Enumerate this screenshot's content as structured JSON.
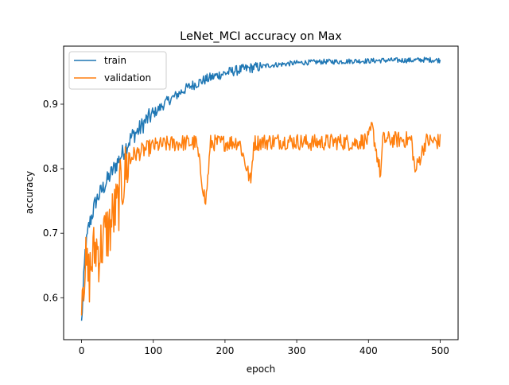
{
  "chart_data": {
    "type": "line",
    "title": "LeNet_MCI accuracy on Max",
    "xlabel": "epoch",
    "ylabel": "accuracy",
    "xlim": [
      -25,
      525
    ],
    "ylim": [
      0.535,
      0.99
    ],
    "xticks": [
      0,
      100,
      200,
      300,
      400,
      500
    ],
    "yticks": [
      0.6,
      0.7,
      0.8,
      0.9
    ],
    "ytick_labels": [
      "0.6",
      "0.7",
      "0.8",
      "0.9"
    ],
    "legend_position": "top-left",
    "grid": false,
    "series": [
      {
        "name": "train",
        "color": "#1f77b4",
        "x": [
          0,
          5,
          10,
          15,
          20,
          25,
          30,
          40,
          50,
          60,
          70,
          80,
          90,
          100,
          110,
          120,
          130,
          140,
          150,
          160,
          170,
          180,
          190,
          200,
          210,
          220,
          230,
          240,
          250,
          260,
          270,
          280,
          290,
          300,
          320,
          340,
          360,
          380,
          400,
          420,
          440,
          460,
          480,
          500
        ],
        "y": [
          0.56,
          0.67,
          0.71,
          0.73,
          0.75,
          0.76,
          0.77,
          0.79,
          0.81,
          0.83,
          0.85,
          0.86,
          0.875,
          0.885,
          0.895,
          0.905,
          0.912,
          0.92,
          0.927,
          0.932,
          0.937,
          0.941,
          0.945,
          0.948,
          0.951,
          0.953,
          0.955,
          0.957,
          0.958,
          0.96,
          0.961,
          0.962,
          0.963,
          0.964,
          0.965,
          0.966,
          0.966,
          0.967,
          0.967,
          0.968,
          0.968,
          0.968,
          0.969,
          0.968
        ]
      },
      {
        "name": "validation",
        "color": "#ff7f0e",
        "x": [
          0,
          5,
          10,
          15,
          20,
          25,
          30,
          35,
          40,
          45,
          50,
          55,
          60,
          65,
          70,
          80,
          90,
          100,
          120,
          140,
          160,
          173,
          180,
          200,
          220,
          236,
          240,
          260,
          280,
          300,
          320,
          340,
          360,
          380,
          400,
          405,
          417,
          420,
          440,
          460,
          465,
          480,
          500
        ],
        "y": [
          0.62,
          0.65,
          0.63,
          0.66,
          0.68,
          0.67,
          0.69,
          0.7,
          0.71,
          0.73,
          0.74,
          0.77,
          0.79,
          0.81,
          0.82,
          0.825,
          0.83,
          0.835,
          0.838,
          0.84,
          0.84,
          0.745,
          0.84,
          0.84,
          0.842,
          0.778,
          0.84,
          0.842,
          0.843,
          0.842,
          0.84,
          0.841,
          0.842,
          0.84,
          0.845,
          0.865,
          0.79,
          0.845,
          0.845,
          0.845,
          0.795,
          0.843,
          0.842
        ]
      }
    ]
  }
}
